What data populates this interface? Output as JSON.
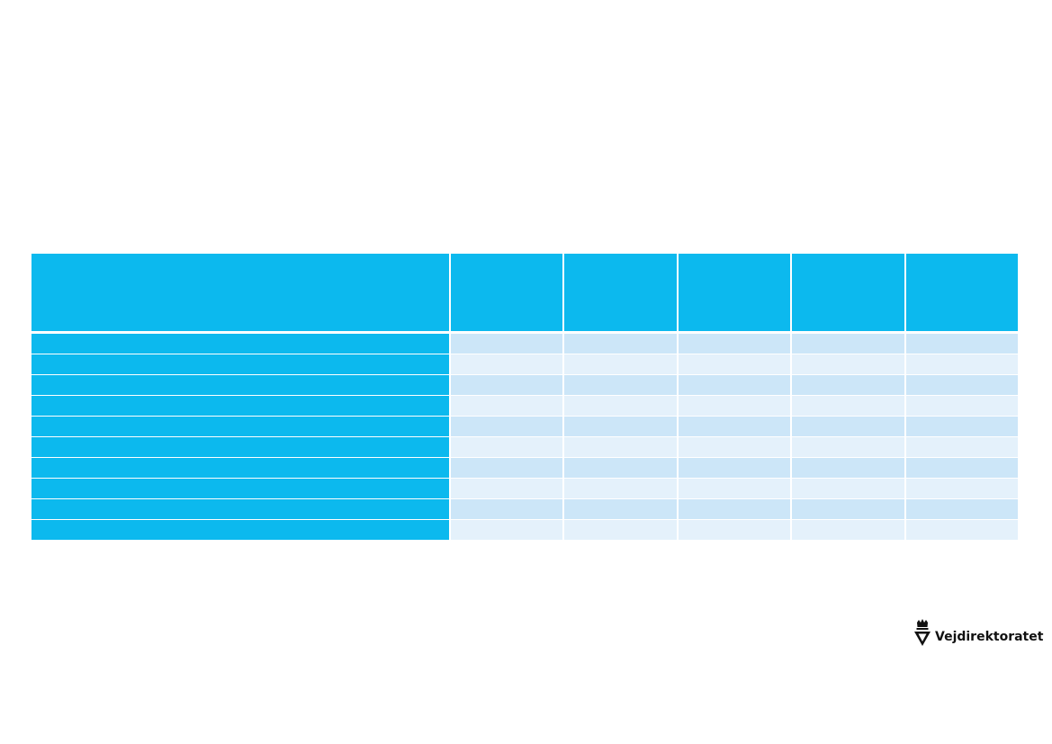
{
  "colors": {
    "header": "#0cb9ee",
    "row_band_dark": "#cce6f8",
    "row_band_light": "#e4f1fb",
    "white": "#ffffff"
  },
  "table": {
    "column_count": 6,
    "header": [
      "",
      "",
      "",
      "",
      "",
      ""
    ],
    "rows": [
      [
        "",
        "",
        "",
        "",
        "",
        ""
      ],
      [
        "",
        "",
        "",
        "",
        "",
        ""
      ],
      [
        "",
        "",
        "",
        "",
        "",
        ""
      ],
      [
        "",
        "",
        "",
        "",
        "",
        ""
      ],
      [
        "",
        "",
        "",
        "",
        "",
        ""
      ],
      [
        "",
        "",
        "",
        "",
        "",
        ""
      ],
      [
        "",
        "",
        "",
        "",
        "",
        ""
      ],
      [
        "",
        "",
        "",
        "",
        "",
        ""
      ],
      [
        "",
        "",
        "",
        "",
        "",
        ""
      ],
      [
        "",
        "",
        "",
        "",
        "",
        ""
      ]
    ]
  },
  "logo": {
    "text": "Vejdirektoratet",
    "icon": "crown-triangle-icon"
  }
}
